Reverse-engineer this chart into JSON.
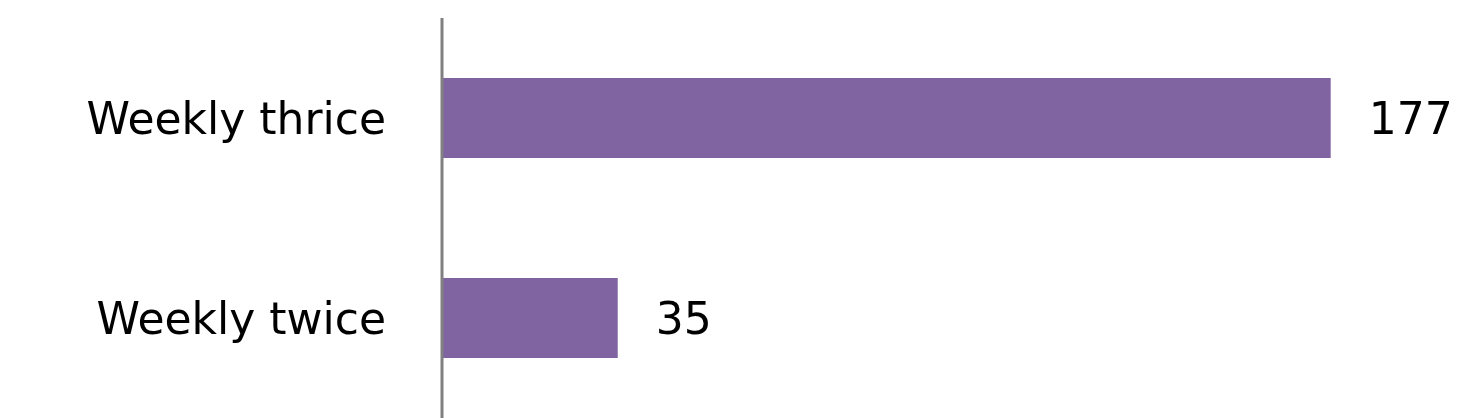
{
  "chart_data": {
    "type": "bar",
    "orientation": "horizontal",
    "categories": [
      "Weekly thrice",
      "Weekly twice"
    ],
    "values": [
      177,
      35
    ],
    "color": "#8064a2",
    "data_labels": true,
    "grid": false,
    "legend": false
  }
}
